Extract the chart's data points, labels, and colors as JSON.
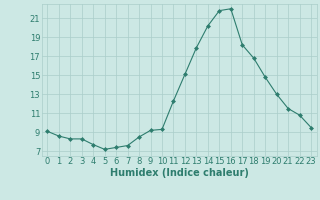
{
  "title": "",
  "xlabel": "Humidex (Indice chaleur)",
  "x": [
    0,
    1,
    2,
    3,
    4,
    5,
    6,
    7,
    8,
    9,
    10,
    11,
    12,
    13,
    14,
    15,
    16,
    17,
    18,
    19,
    20,
    21,
    22,
    23
  ],
  "y": [
    9.1,
    8.6,
    8.3,
    8.3,
    7.7,
    7.2,
    7.4,
    7.6,
    8.5,
    9.2,
    9.3,
    12.3,
    15.1,
    17.9,
    20.2,
    21.8,
    22.0,
    18.2,
    16.8,
    14.8,
    13.0,
    11.5,
    10.8,
    9.5
  ],
  "line_color": "#2e7d6e",
  "marker": "D",
  "marker_size": 2.0,
  "bg_color": "#cce8e4",
  "grid_color": "#aaceca",
  "axis_color": "#2e7d6e",
  "text_color": "#2e7d6e",
  "ylim": [
    6.5,
    22.5
  ],
  "yticks": [
    7,
    9,
    11,
    13,
    15,
    17,
    19,
    21
  ],
  "xlim": [
    -0.5,
    23.5
  ],
  "xticks": [
    0,
    1,
    2,
    3,
    4,
    5,
    6,
    7,
    8,
    9,
    10,
    11,
    12,
    13,
    14,
    15,
    16,
    17,
    18,
    19,
    20,
    21,
    22,
    23
  ],
  "tick_fontsize": 6.0,
  "xlabel_fontsize": 7.0
}
